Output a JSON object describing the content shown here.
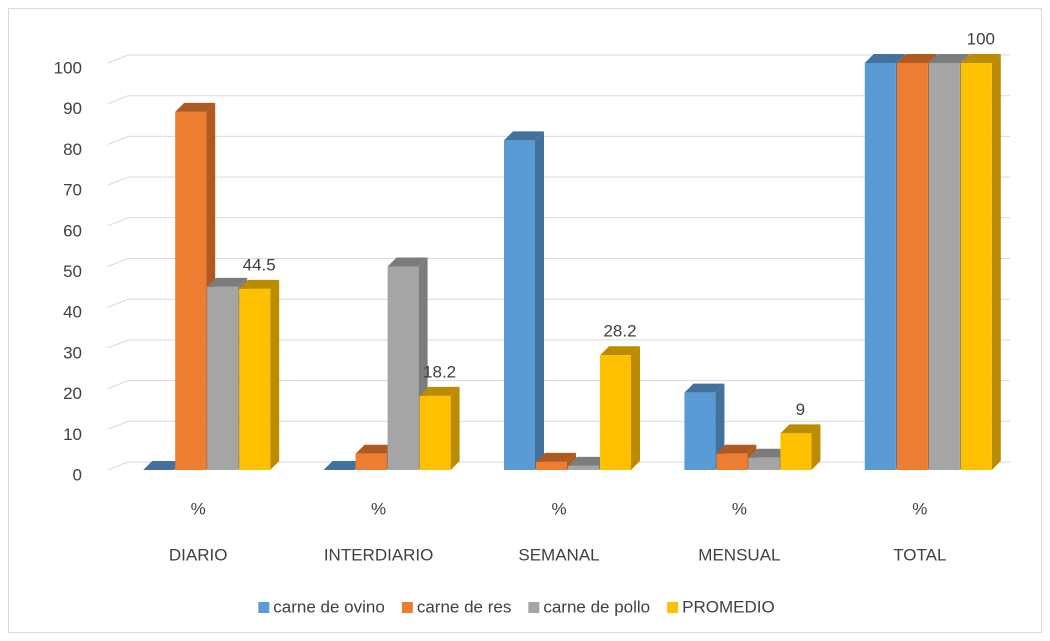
{
  "chart_data": {
    "type": "bar3d",
    "categories": [
      "DIARIO",
      "INTERDIARIO",
      "SEMANAL",
      "MENSUAL",
      "TOTAL"
    ],
    "subcategories": [
      "%",
      "%",
      "%",
      "%",
      "%"
    ],
    "series": [
      {
        "name": "carne de ovino",
        "color": "#5b9bd5",
        "side_color": "#41719c",
        "values": [
          0,
          0,
          81,
          19,
          100
        ]
      },
      {
        "name": "carne de res",
        "color": "#ed7d31",
        "side_color": "#ae5a21",
        "values": [
          88,
          4,
          2,
          4,
          100
        ]
      },
      {
        "name": "carne de pollo",
        "color": "#a5a5a5",
        "side_color": "#7c7c7c",
        "values": [
          45,
          50,
          1,
          3,
          100
        ]
      },
      {
        "name": "PROMEDIO",
        "color": "#ffc000",
        "side_color": "#bc8c00",
        "values": [
          44.5,
          18.2,
          28.2,
          9,
          100
        ],
        "data_labels": true
      }
    ],
    "ylim": [
      0,
      100
    ],
    "yticks": [
      0,
      10,
      20,
      30,
      40,
      50,
      60,
      70,
      80,
      90,
      100
    ],
    "grid": true,
    "legend": "bottom"
  }
}
